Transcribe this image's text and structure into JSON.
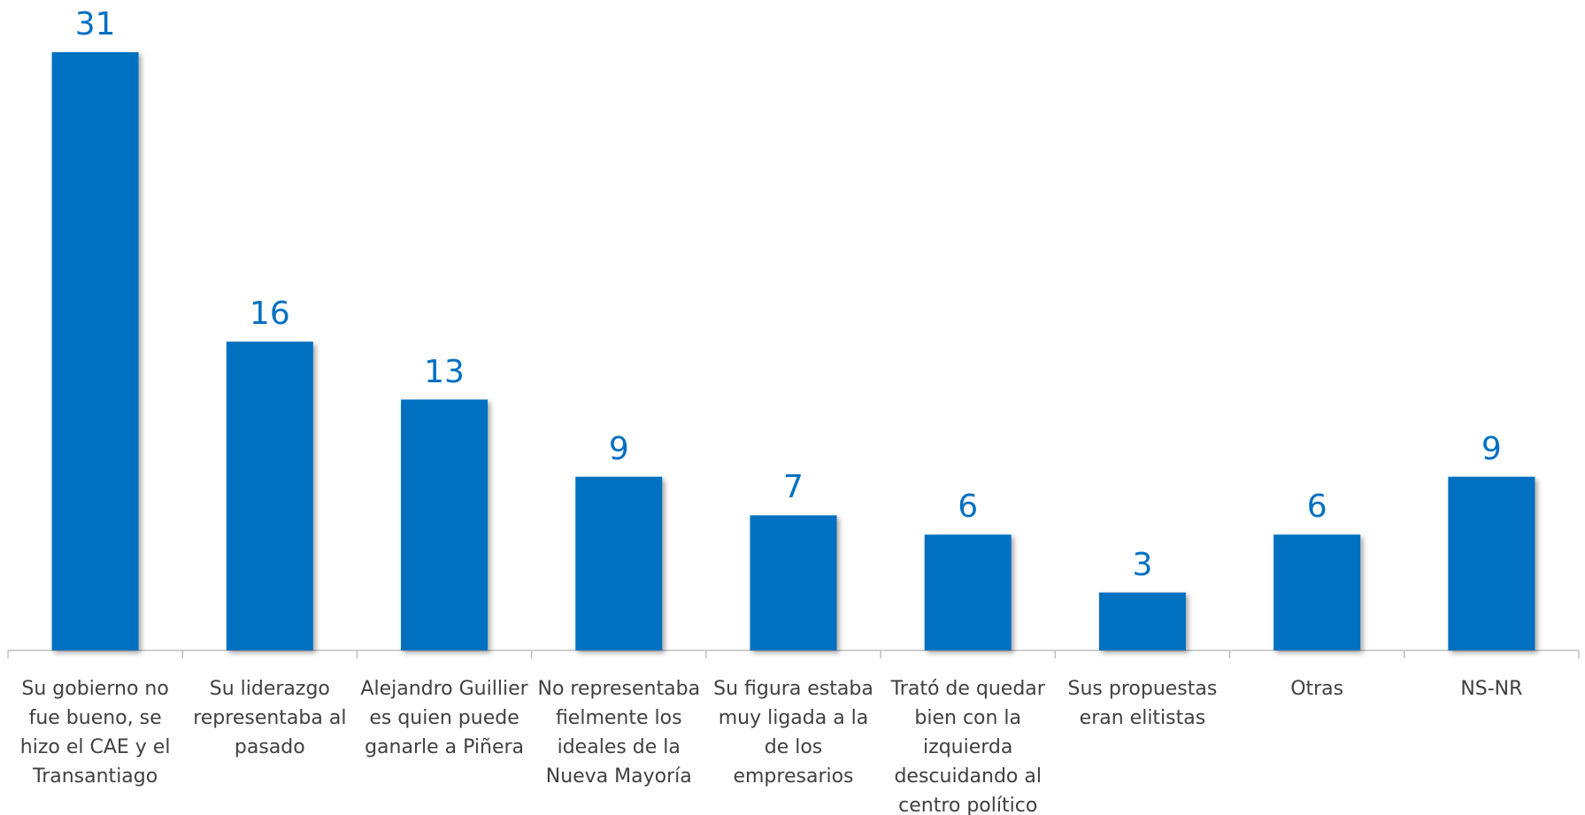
{
  "chart_data": {
    "type": "bar",
    "categories": [
      "Su gobierno no fue bueno, se hizo el CAE y el Transantiago",
      "Su liderazgo representaba al pasado",
      "Alejandro Guillier es quien puede ganarle a Piñera",
      "No representaba fielmente los ideales de la Nueva Mayoría",
      "Su figura estaba muy ligada a la de los empresarios",
      "Trató de quedar bien con la izquierda descuidando al centro político",
      "Sus propuestas eran elitistas",
      "Otras",
      "NS-NR"
    ],
    "values": [
      31,
      16,
      13,
      9,
      7,
      6,
      3,
      6,
      9
    ],
    "color": "#0070c0"
  }
}
